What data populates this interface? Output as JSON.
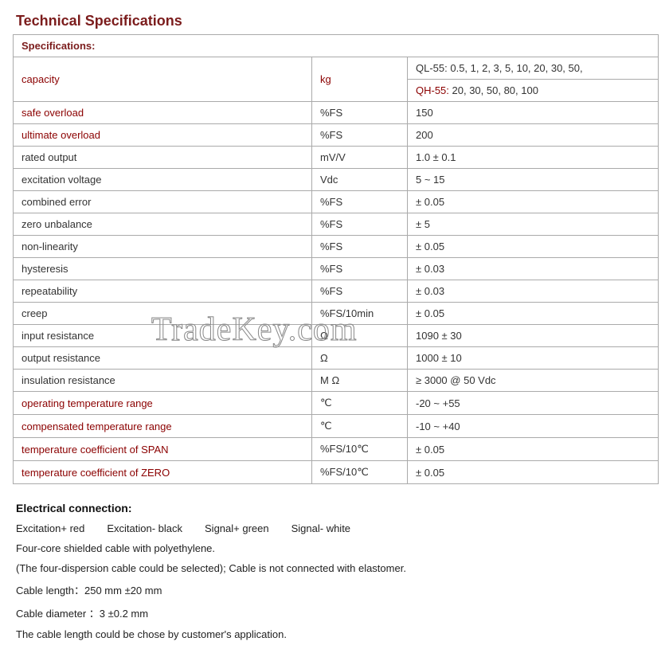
{
  "title": "Technical Specifications",
  "specs_heading": "Specifications:",
  "watermark": "TradeKey.com",
  "capacity": {
    "label": "capacity",
    "unit": "kg",
    "ql_prefix": "QL-55: ",
    "ql_values": "0.5, 1, 2, 3, 5, 10, 20, 30, 50,",
    "qh_prefix": "QH-55:",
    "qh_values": "   20, 30, 50, 80, 100"
  },
  "rows": [
    {
      "label": "safe overload",
      "unit": "%FS",
      "value": "150",
      "red": true
    },
    {
      "label": "ultimate overload",
      "unit": "%FS",
      "value": "200",
      "red": true
    },
    {
      "label": "rated output",
      "unit": "mV/V",
      "value": "1.0 ± 0.1",
      "red": false
    },
    {
      "label": "excitation voltage",
      "unit": "Vdc",
      "value": "5 ~ 15",
      "red": false
    },
    {
      "label": "combined error",
      "unit": "%FS",
      "value": "± 0.05",
      "red": false
    },
    {
      "label": "zero unbalance",
      "unit": "%FS",
      "value": "± 5",
      "red": false
    },
    {
      "label": "non-linearity",
      "unit": "%FS",
      "value": "± 0.05",
      "red": false
    },
    {
      "label": "hysteresis",
      "unit": "%FS",
      "value": "± 0.03",
      "red": false
    },
    {
      "label": "repeatability",
      "unit": "%FS",
      "value": "± 0.03",
      "red": false
    },
    {
      "label": "creep",
      "unit": "%FS/10min",
      "value": "± 0.05",
      "red": false
    },
    {
      "label": "input resistance",
      "unit": "Ω",
      "value": "1090 ± 30",
      "red": false
    },
    {
      "label": "output resistance",
      "unit": "Ω",
      "value": "1000 ± 10",
      "red": false
    },
    {
      "label": "insulation resistance",
      "unit": "M Ω",
      "value": "≥ 3000 @ 50 Vdc",
      "red": false
    },
    {
      "label": "operating temperature range",
      "unit": "℃",
      "value": "-20 ~ +55",
      "red": true
    },
    {
      "label": "compensated temperature range",
      "unit": "℃",
      "value": "-10 ~ +40",
      "red": true
    },
    {
      "label": "temperature coefficient of SPAN",
      "unit": "%FS/10℃",
      "value": "± 0.05",
      "red": true
    },
    {
      "label": "temperature coefficient of ZERO",
      "unit": "%FS/10℃",
      "value": "± 0.05",
      "red": true
    }
  ],
  "electrical": {
    "heading": "Electrical connection:",
    "wires": [
      "Excitation+ red",
      "Excitation- black",
      "Signal+ green",
      "Signal- white"
    ],
    "lines": [
      "Four-core shielded cable with polyethylene.",
      "(The four-dispersion cable could be selected); Cable is not connected with elastomer.",
      "Cable length：250 mm  ±20 mm",
      "Cable diameter ：3  ±0.2 mm",
      "The cable length could be chose by customer's application."
    ]
  },
  "colors": {
    "heading": "#7b1c1c",
    "red_text": "#8b0000",
    "border": "#aaaaaa",
    "body_text": "#333333"
  }
}
